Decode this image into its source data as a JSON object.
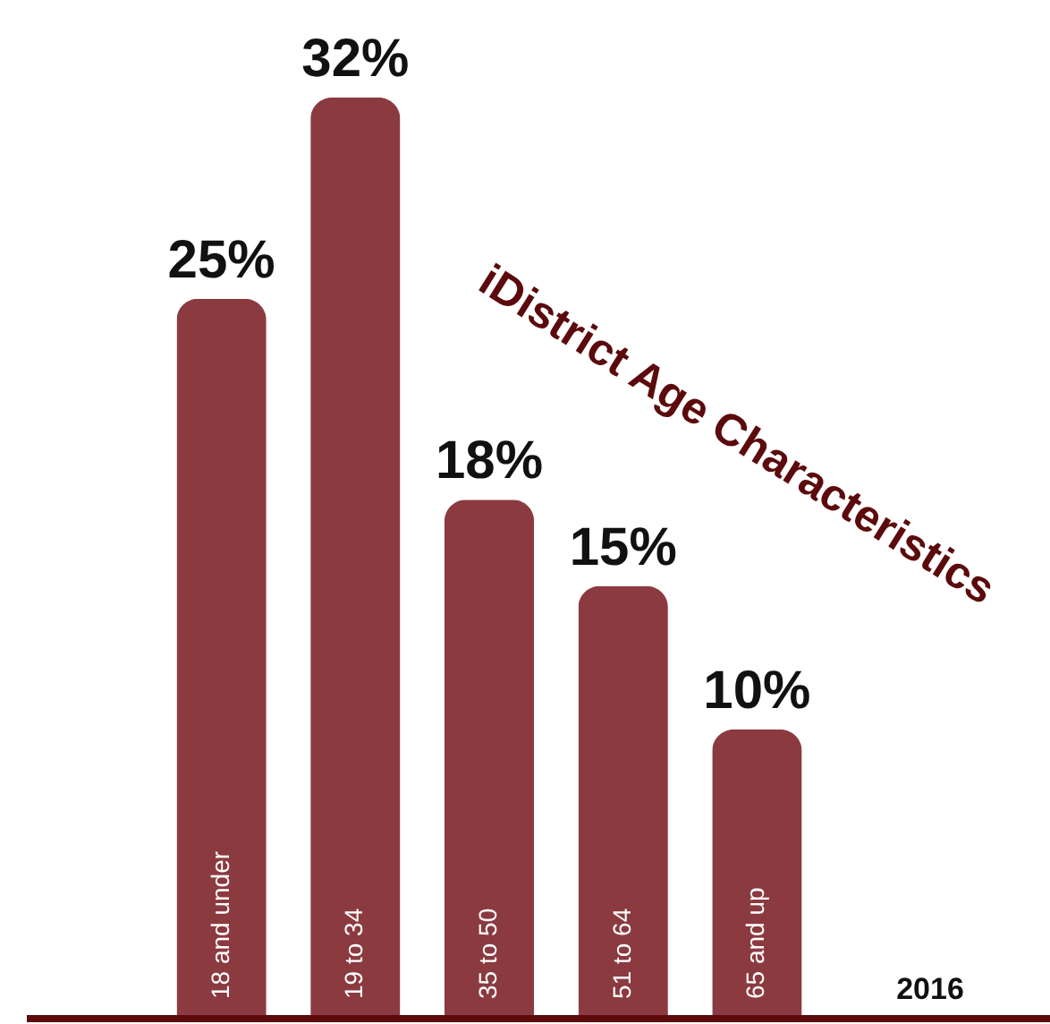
{
  "chart_data": {
    "type": "bar",
    "title": "iDistrict Age Characteristics",
    "categories": [
      "18 and under",
      "19 to 34",
      "35 to 50",
      "51 to 64",
      "65 and up"
    ],
    "values": [
      25,
      32,
      18,
      15,
      10
    ],
    "value_labels": [
      "25%",
      "32%",
      "18%",
      "15%",
      "10%"
    ],
    "color": "#8b3a40",
    "ylim": [
      0,
      35.4
    ],
    "tick_labels": false,
    "grid": false,
    "annotations": [
      "2016"
    ]
  }
}
